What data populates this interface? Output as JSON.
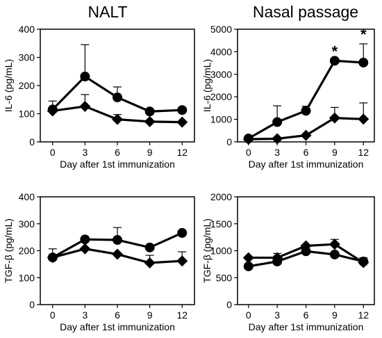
{
  "column_titles": [
    "NALT",
    "Nasal passage"
  ],
  "chart_data": [
    {
      "type": "line",
      "x": [
        0,
        3,
        6,
        9,
        12
      ],
      "xticks": [
        "0",
        "3",
        "6",
        "9",
        "12"
      ],
      "xlabel": "Day after 1st immunization",
      "ylabel": "IL-6 (pg/mL)",
      "ylim": [
        0,
        400
      ],
      "yticks": [
        "0",
        "100",
        "200",
        "300",
        "400"
      ],
      "grid": false,
      "series": [
        {
          "marker": "circle",
          "values": [
            115,
            232,
            158,
            108,
            113
          ],
          "err": [
            30,
            113,
            37,
            0,
            0
          ]
        },
        {
          "marker": "diamond",
          "values": [
            110,
            126,
            80,
            72,
            70
          ],
          "err": [
            0,
            42,
            17,
            0,
            0
          ]
        }
      ],
      "annotations": []
    },
    {
      "type": "line",
      "x": [
        0,
        3,
        6,
        9,
        12
      ],
      "xticks": [
        "0",
        "3",
        "6",
        "9",
        "12"
      ],
      "xlabel": "Day after 1st immunization",
      "ylabel": "IL-6 (pg/mL)",
      "ylim": [
        0,
        5000
      ],
      "yticks": [
        "0",
        "1000",
        "2000",
        "3000",
        "4000",
        "5000"
      ],
      "grid": false,
      "series": [
        {
          "marker": "circle",
          "values": [
            150,
            880,
            1380,
            3600,
            3520
          ],
          "err": [
            0,
            720,
            200,
            0,
            830
          ]
        },
        {
          "marker": "diamond",
          "values": [
            120,
            140,
            290,
            1060,
            1010
          ],
          "err": [
            0,
            0,
            0,
            470,
            720
          ]
        }
      ],
      "annotations": [
        {
          "x": 9,
          "text": "*"
        },
        {
          "x": 12,
          "text": "*"
        }
      ]
    },
    {
      "type": "line",
      "x": [
        0,
        3,
        6,
        9,
        12
      ],
      "xticks": [
        "0",
        "3",
        "6",
        "9",
        "12"
      ],
      "xlabel": "Day after 1st immunization",
      "ylabel": "TGF-β (pg/mL)",
      "ylim": [
        0,
        400
      ],
      "yticks": [
        "0",
        "100",
        "200",
        "300",
        "400"
      ],
      "grid": false,
      "series": [
        {
          "marker": "circle",
          "values": [
            175,
            242,
            240,
            212,
            266
          ],
          "err": [
            32,
            0,
            46,
            0,
            0
          ]
        },
        {
          "marker": "diamond",
          "values": [
            175,
            207,
            187,
            155,
            162
          ],
          "err": [
            0,
            0,
            0,
            28,
            34
          ]
        }
      ],
      "annotations": []
    },
    {
      "type": "line",
      "x": [
        0,
        3,
        6,
        9,
        12
      ],
      "xticks": [
        "0",
        "3",
        "6",
        "9",
        "12"
      ],
      "xlabel": "Day after 1st immunization",
      "ylabel": "TGF-β (pg/mL)",
      "ylim": [
        0,
        2000
      ],
      "yticks": [
        "0",
        "500",
        "1000",
        "1500",
        "2000"
      ],
      "grid": false,
      "series": [
        {
          "marker": "circle",
          "values": [
            710,
            800,
            990,
            930,
            800
          ],
          "err": [
            0,
            0,
            0,
            0,
            0
          ]
        },
        {
          "marker": "diamond",
          "values": [
            870,
            870,
            1090,
            1120,
            780
          ],
          "err": [
            0,
            80,
            0,
            90,
            90
          ]
        }
      ],
      "annotations": []
    }
  ]
}
